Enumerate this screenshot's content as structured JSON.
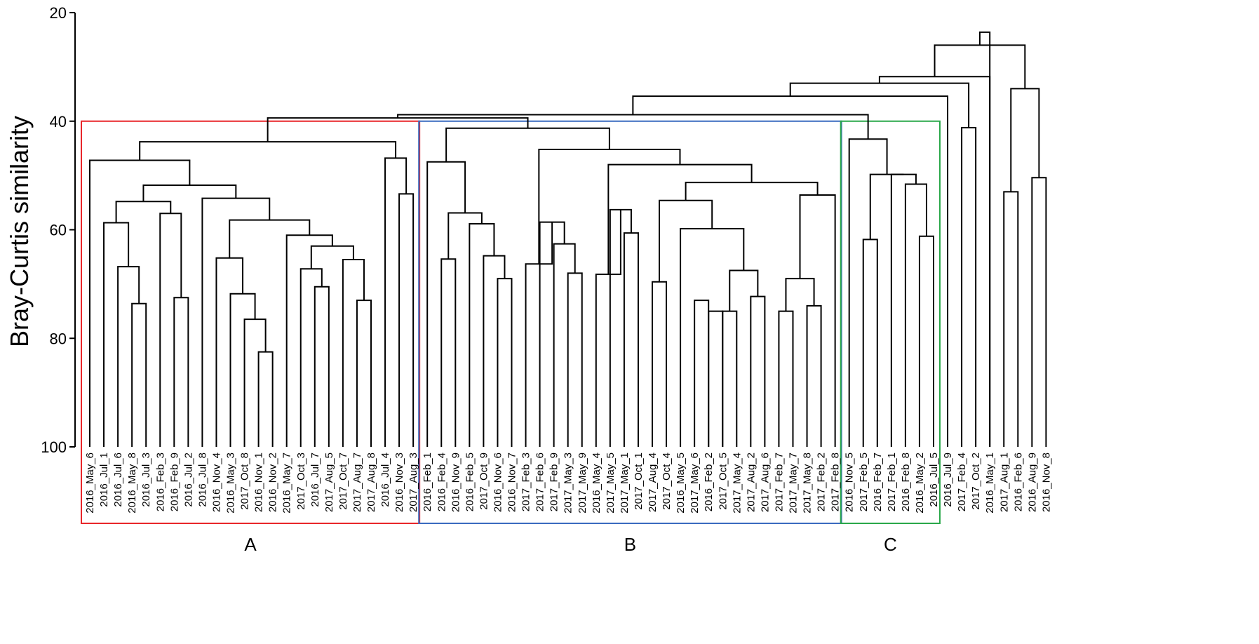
{
  "chart_data": {
    "type": "dendrogram",
    "title": "",
    "ylabel": "Bray-Curtis similarity",
    "xlabel": "",
    "ylim": [
      20,
      100
    ],
    "yticks": [
      "20",
      "40",
      "60",
      "80",
      "100"
    ],
    "colors": {
      "A": "#e8262a",
      "B": "#3a6bbf",
      "C": "#2aa84a",
      "line": "#000000"
    },
    "leaves": [
      "2016_May_6",
      "2016_Jul_1",
      "2016_Jul_6",
      "2016_May_8",
      "2016_Jul_3",
      "2016_Feb_3",
      "2016_Feb_9",
      "2016_Jul_2",
      "2016_Jul_8",
      "2016_Nov_4",
      "2016_May_3",
      "2017_Oct_8",
      "2016_Nov_1",
      "2016_Nov_2",
      "2016_May_7",
      "2017_Oct_3",
      "2016_Jul_7",
      "2017_Aug_5",
      "2017_Oct_7",
      "2017_Aug_7",
      "2017_Aug_8",
      "2016_Jul_4",
      "2016_Nov_3",
      "2017_Aug_3",
      "2016_Feb_1",
      "2016_Feb_4",
      "2016_Nov_9",
      "2016_Feb_5",
      "2017_Oct_9",
      "2016_Nov_6",
      "2016_Nov_7",
      "2017_Feb_3",
      "2017_Feb_6",
      "2017_Feb_9",
      "2017_May_3",
      "2017_May_9",
      "2016_May_4",
      "2017_May_5",
      "2017_May_1",
      "2017_Oct_1",
      "2017_Aug_4",
      "2017_Oct_4",
      "2016_May_5",
      "2017_May_6",
      "2016_Feb_2",
      "2017_Oct_5",
      "2017_May_4",
      "2017_Aug_2",
      "2017_Aug_6",
      "2017_Feb_7",
      "2017_May_7",
      "2017_May_8",
      "2017_Feb_2",
      "2017_Feb_8",
      "2016_Nov_5",
      "2017_Feb_5",
      "2016_Feb_7",
      "2017_Feb_1",
      "2016_Feb_8",
      "2016_May_2",
      "2016_Jul_5",
      "2016_Jul_9",
      "2017_Feb_4",
      "2017_Oct_2",
      "2016_May_1",
      "2017_Aug_1",
      "2016_Feb_6",
      "2016_Aug_9",
      "2016_Nov_8"
    ],
    "merges": [
      {
        "a": "L12",
        "b": "L13",
        "h": 82.5
      },
      {
        "a": "L11",
        "b": "m0",
        "h": 76.5
      },
      {
        "a": "L10",
        "b": "m1",
        "h": 71.8
      },
      {
        "a": "L9",
        "b": "m2",
        "h": 65.2
      },
      {
        "a": "L3",
        "b": "L4",
        "h": 73.6
      },
      {
        "a": "L2",
        "b": "m4",
        "h": 66.8
      },
      {
        "a": "L1",
        "b": "m5",
        "h": 58.7
      },
      {
        "a": "L6",
        "b": "L7",
        "h": 72.5
      },
      {
        "a": "L5",
        "b": "m7",
        "h": 57.0
      },
      {
        "a": "m6",
        "b": "m8",
        "h": 54.8
      },
      {
        "a": "L16",
        "b": "L17",
        "h": 70.5
      },
      {
        "a": "L15",
        "b": "m10",
        "h": 67.2
      },
      {
        "a": "L19",
        "b": "L20",
        "h": 73.0
      },
      {
        "a": "L18",
        "b": "m12",
        "h": 65.5
      },
      {
        "a": "m11",
        "b": "m13",
        "h": 63.0
      },
      {
        "a": "L14",
        "b": "m14",
        "h": 61.0
      },
      {
        "a": "m3",
        "b": "m15",
        "h": 58.2
      },
      {
        "a": "L8",
        "b": "m16",
        "h": 54.2
      },
      {
        "a": "m9",
        "b": "m17",
        "h": 51.8
      },
      {
        "a": "L0",
        "b": "m18",
        "h": 47.2
      },
      {
        "a": "L22",
        "b": "L23",
        "h": 53.4
      },
      {
        "a": "L21",
        "b": "m20",
        "h": 46.8
      },
      {
        "a": "m19",
        "b": "m21",
        "h": 43.8
      },
      {
        "a": "L25",
        "b": "L26",
        "h": 65.4
      },
      {
        "a": "L29",
        "b": "L30",
        "h": 69.0
      },
      {
        "a": "L28",
        "b": "m24",
        "h": 64.8
      },
      {
        "a": "L27",
        "b": "m25",
        "h": 58.9
      },
      {
        "a": "m23",
        "b": "m26",
        "h": 56.9
      },
      {
        "a": "L24",
        "b": "m27",
        "h": 47.5
      },
      {
        "a": "L34",
        "b": "L35",
        "h": 68.0
      },
      {
        "a": "L33",
        "b": "m29",
        "h": 62.6
      },
      {
        "a": "L32",
        "b": "m30",
        "h": 58.6
      },
      {
        "a": "L31",
        "b": "m31",
        "h": 66.3
      },
      {
        "a": "L38",
        "b": "L39",
        "h": 60.6
      },
      {
        "a": "L37",
        "b": "m33",
        "h": 56.3
      },
      {
        "a": "L36",
        "b": "m34",
        "h": 68.2
      },
      {
        "a": "L40",
        "b": "L41",
        "h": 69.6
      },
      {
        "a": "L45",
        "b": "L46",
        "h": 75.0
      },
      {
        "a": "L47",
        "b": "L48",
        "h": 72.3
      },
      {
        "a": "m37",
        "b": "m38",
        "h": 67.5
      },
      {
        "a": "L44",
        "b": "L45",
        "h": 75.0
      },
      {
        "a": "L43",
        "b": "L44",
        "h": 73.0
      },
      {
        "a": "L49",
        "b": "L50",
        "h": 75.0
      },
      {
        "a": "L51",
        "b": "L52",
        "h": 74.0
      },
      {
        "a": "m42",
        "b": "m43",
        "h": 69.0
      },
      {
        "a": "m44",
        "b": "L53",
        "h": 53.6
      },
      {
        "a": "L42",
        "b": "m39",
        "h": 59.8
      },
      {
        "a": "m36",
        "b": "m46",
        "h": 54.6
      },
      {
        "a": "m47",
        "b": "m45",
        "h": 51.3
      },
      {
        "a": "m35",
        "b": "m48",
        "h": 48.0
      },
      {
        "a": "m32",
        "b": "m49",
        "h": 45.2
      },
      {
        "a": "m28",
        "b": "m50",
        "h": 41.3
      },
      {
        "a": "m22",
        "b": "m51",
        "h": 39.4
      },
      {
        "a": "L59",
        "b": "L60",
        "h": 61.2
      },
      {
        "a": "L58",
        "b": "m53",
        "h": 51.6
      },
      {
        "a": "L57",
        "b": "m54",
        "h": 49.8
      },
      {
        "a": "L55",
        "b": "L56",
        "h": 61.8
      },
      {
        "a": "m56",
        "b": "m55",
        "h": 49.8
      },
      {
        "a": "L54",
        "b": "m57",
        "h": 43.3
      },
      {
        "a": "m52",
        "b": "m58",
        "h": 38.8
      },
      {
        "a": "L62",
        "b": "L63",
        "h": 41.2
      },
      {
        "a": "m59",
        "b": "L61",
        "h": 35.4
      },
      {
        "a": "m61",
        "b": "m60",
        "h": 33.0
      },
      {
        "a": "L65",
        "b": "L66",
        "h": 53.0
      },
      {
        "a": "L67",
        "b": "L68",
        "h": 50.4
      },
      {
        "a": "m63",
        "b": "m64",
        "h": 34.0
      },
      {
        "a": "m62",
        "b": "L64",
        "h": 31.8
      },
      {
        "a": "m66",
        "b": "m65",
        "h": 26.0
      },
      {
        "a": "m67",
        "b": "L64",
        "h": 23.6
      }
    ],
    "groups": [
      {
        "label": "A",
        "color": "#e8262a"
      },
      {
        "label": "B",
        "color": "#3a6bbf"
      },
      {
        "label": "C",
        "color": "#2aa84a"
      }
    ]
  }
}
